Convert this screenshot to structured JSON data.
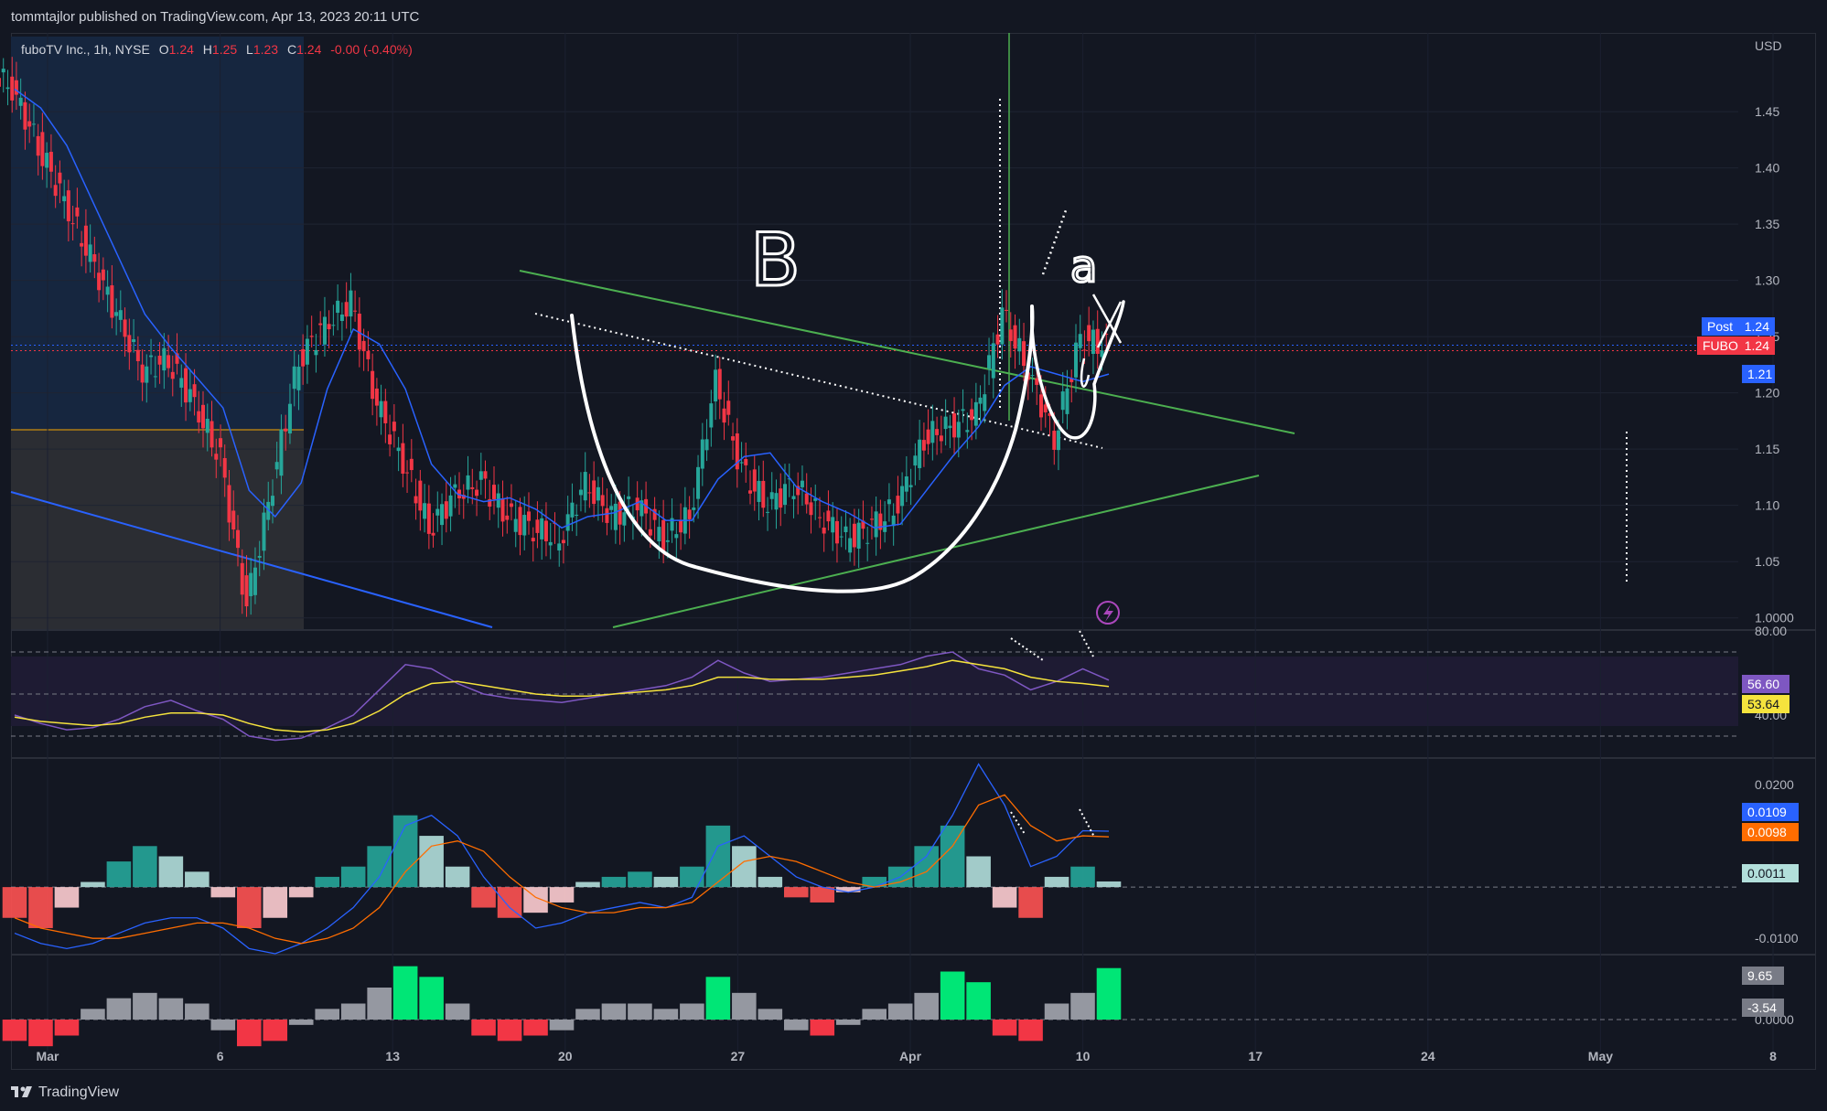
{
  "header": {
    "published": "tommtajlor published on TradingView.com, Apr 13, 2023 20:11 UTC"
  },
  "footer": {
    "brand": "TradingView",
    "logo_icon": "tradingview-logo-icon"
  },
  "legend": {
    "symbol": "fuboTV Inc., 1h, NYSE",
    "open_label": "O",
    "open": "1.24",
    "high_label": "H",
    "high": "1.25",
    "low_label": "L",
    "low": "1.23",
    "close_label": "C",
    "close": "1.24",
    "change": "-0.00 (-0.40%)",
    "change_color": "#f23645"
  },
  "annotations": {
    "letter_b": "B",
    "letter_a": "a"
  },
  "badges": {
    "post": {
      "label": "Post",
      "value": "1.24",
      "color": "#2962ff"
    },
    "fubo": {
      "label": "FUBO",
      "value": "1.24",
      "color": "#f23645"
    },
    "level": {
      "value": "1.21",
      "color": "#2962ff"
    },
    "rsi": {
      "value": "56.60",
      "color": "#7e57c2"
    },
    "rsi_ma": {
      "value": "53.64",
      "color": "#f5e33d"
    },
    "macd": {
      "value": "0.0109",
      "color": "#2962ff"
    },
    "signal": {
      "value": "0.0098",
      "color": "#ff6d00"
    },
    "hist": {
      "value": "0.0011",
      "color": "#b2dfdb"
    },
    "osc_pos": {
      "value": "9.65",
      "color": "#787b86"
    },
    "osc_neg": {
      "value": "-3.54",
      "color": "#787b86"
    }
  },
  "chart_data": [
    {
      "type": "candlestick",
      "title": "",
      "currency": "USD",
      "x_ticks": [
        "Mar",
        "6",
        "13",
        "20",
        "27",
        "Apr",
        "10",
        "17",
        "24",
        "May",
        "8"
      ],
      "y_ticks": [
        "1.45",
        "1.40",
        "1.35",
        "1.30",
        "1.25",
        "1.20",
        "1.15",
        "1.10",
        "1.05",
        "1.0000"
      ],
      "ylim": [
        0.99,
        1.52
      ],
      "price_levels": {
        "post": 1.24,
        "last": 1.24,
        "blue_level": 1.21
      },
      "series": [
        {
          "name": "price_close_approx",
          "values": [
            1.47,
            1.42,
            1.37,
            1.32,
            1.27,
            1.22,
            1.23,
            1.19,
            1.14,
            1.01,
            1.12,
            1.23,
            1.26,
            1.28,
            1.19,
            1.14,
            1.08,
            1.11,
            1.12,
            1.09,
            1.08,
            1.07,
            1.12,
            1.09,
            1.1,
            1.07,
            1.09,
            1.21,
            1.13,
            1.1,
            1.12,
            1.09,
            1.07,
            1.08,
            1.1,
            1.16,
            1.17,
            1.18,
            1.27,
            1.22,
            1.16,
            1.25,
            1.24
          ]
        }
      ]
    },
    {
      "type": "line",
      "title": "",
      "y_ticks": [
        "80.00",
        "40.00"
      ],
      "ylim": [
        20,
        80
      ],
      "series": [
        {
          "name": "",
          "values": [
            40,
            36,
            33,
            34,
            38,
            44,
            47,
            42,
            38,
            30,
            28,
            29,
            34,
            40,
            52,
            64,
            62,
            55,
            50,
            48,
            47,
            46,
            48,
            50,
            52,
            54,
            58,
            66,
            60,
            56,
            57,
            58,
            60,
            62,
            64,
            68,
            70,
            62,
            59,
            52,
            56,
            62,
            56.6
          ]
        },
        {
          "name": "",
          "values": [
            39,
            37,
            36,
            35,
            36,
            39,
            41,
            41,
            40,
            36,
            33,
            32,
            33,
            36,
            42,
            50,
            55,
            56,
            54,
            52,
            50,
            49,
            49,
            50,
            51,
            52,
            54,
            58,
            58,
            57,
            57,
            57,
            58,
            59,
            61,
            63,
            66,
            64,
            62,
            58,
            56,
            55,
            53.6
          ]
        }
      ]
    },
    {
      "type": "bar",
      "title": "",
      "y_ticks": [
        "0.0200",
        "-0.0100"
      ],
      "ylim": [
        -0.013,
        0.025
      ],
      "series": [
        {
          "name": "",
          "values": [
            -0.006,
            -0.008,
            -0.004,
            0.001,
            0.005,
            0.008,
            0.006,
            0.003,
            -0.002,
            -0.008,
            -0.006,
            -0.002,
            0.002,
            0.004,
            0.008,
            0.014,
            0.01,
            0.004,
            -0.004,
            -0.006,
            -0.005,
            -0.003,
            0.001,
            0.002,
            0.003,
            0.002,
            0.004,
            0.012,
            0.008,
            0.002,
            -0.002,
            -0.003,
            -0.001,
            0.002,
            0.004,
            0.008,
            0.012,
            0.006,
            -0.004,
            -0.006,
            0.002,
            0.004,
            0.0011
          ]
        },
        {
          "name": "",
          "values": [
            -0.009,
            -0.011,
            -0.012,
            -0.011,
            -0.009,
            -0.007,
            -0.006,
            -0.006,
            -0.008,
            -0.012,
            -0.013,
            -0.011,
            -0.008,
            -0.004,
            0.002,
            0.012,
            0.014,
            0.01,
            0.002,
            -0.004,
            -0.008,
            -0.007,
            -0.005,
            -0.004,
            -0.003,
            -0.004,
            -0.002,
            0.008,
            0.01,
            0.006,
            0.002,
            0.0,
            -0.001,
            0.0,
            0.002,
            0.006,
            0.014,
            0.024,
            0.016,
            0.004,
            0.006,
            0.011,
            0.0109
          ]
        },
        {
          "name": "",
          "values": [
            -0.006,
            -0.008,
            -0.009,
            -0.01,
            -0.01,
            -0.009,
            -0.008,
            -0.007,
            -0.007,
            -0.008,
            -0.01,
            -0.011,
            -0.01,
            -0.008,
            -0.004,
            0.003,
            0.008,
            0.009,
            0.007,
            0.002,
            -0.002,
            -0.004,
            -0.005,
            -0.005,
            -0.004,
            -0.004,
            -0.003,
            0.001,
            0.005,
            0.006,
            0.005,
            0.003,
            0.001,
            0.0,
            0.001,
            0.003,
            0.008,
            0.016,
            0.018,
            0.012,
            0.009,
            0.01,
            0.0098
          ]
        }
      ]
    },
    {
      "type": "bar",
      "title": "",
      "y_ticks": [
        "0.0000"
      ],
      "ylim": [
        -6,
        12
      ],
      "series": [
        {
          "name": "",
          "values": [
            -4,
            -5,
            -3,
            2,
            4,
            5,
            4,
            3,
            -2,
            -5,
            -4,
            -1,
            2,
            3,
            6,
            10,
            8,
            3,
            -3,
            -4,
            -3,
            -2,
            2,
            3,
            3,
            2,
            3,
            8,
            5,
            2,
            -2,
            -3,
            -1,
            2,
            3,
            5,
            9,
            7,
            -3,
            -4,
            3,
            5,
            9.65
          ]
        }
      ]
    }
  ]
}
